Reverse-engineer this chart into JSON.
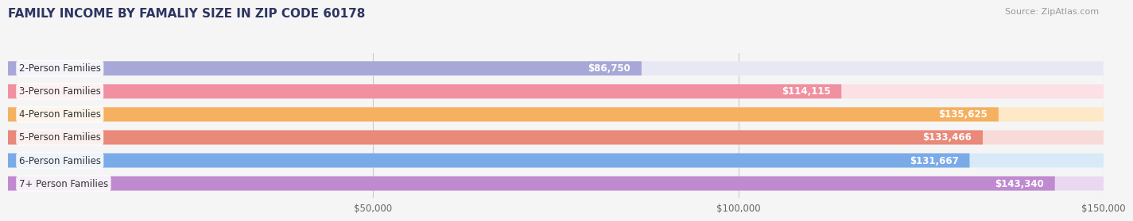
{
  "title": "FAMILY INCOME BY FAMALIY SIZE IN ZIP CODE 60178",
  "source": "Source: ZipAtlas.com",
  "categories": [
    "2-Person Families",
    "3-Person Families",
    "4-Person Families",
    "5-Person Families",
    "6-Person Families",
    "7+ Person Families"
  ],
  "values": [
    86750,
    114115,
    135625,
    133466,
    131667,
    143340
  ],
  "labels": [
    "$86,750",
    "$114,115",
    "$135,625",
    "$133,466",
    "$131,667",
    "$143,340"
  ],
  "bar_colors": [
    "#a8a8d8",
    "#f090a0",
    "#f5b060",
    "#e8897a",
    "#7aabe8",
    "#c08ad0"
  ],
  "bar_bg_colors": [
    "#e8e8f5",
    "#fce0e5",
    "#fde8c8",
    "#f8dbd8",
    "#d8eaf8",
    "#ead8f0"
  ],
  "xlim": [
    0,
    150000
  ],
  "xticks": [
    0,
    50000,
    100000,
    150000
  ],
  "xticklabels": [
    "",
    "$50,000",
    "$100,000",
    "$150,000"
  ],
  "title_color": "#2d3561",
  "title_fontsize": 11,
  "bar_height": 0.62,
  "label_fontsize": 8.5,
  "category_fontsize": 8.5,
  "background_color": "#f5f5f5"
}
